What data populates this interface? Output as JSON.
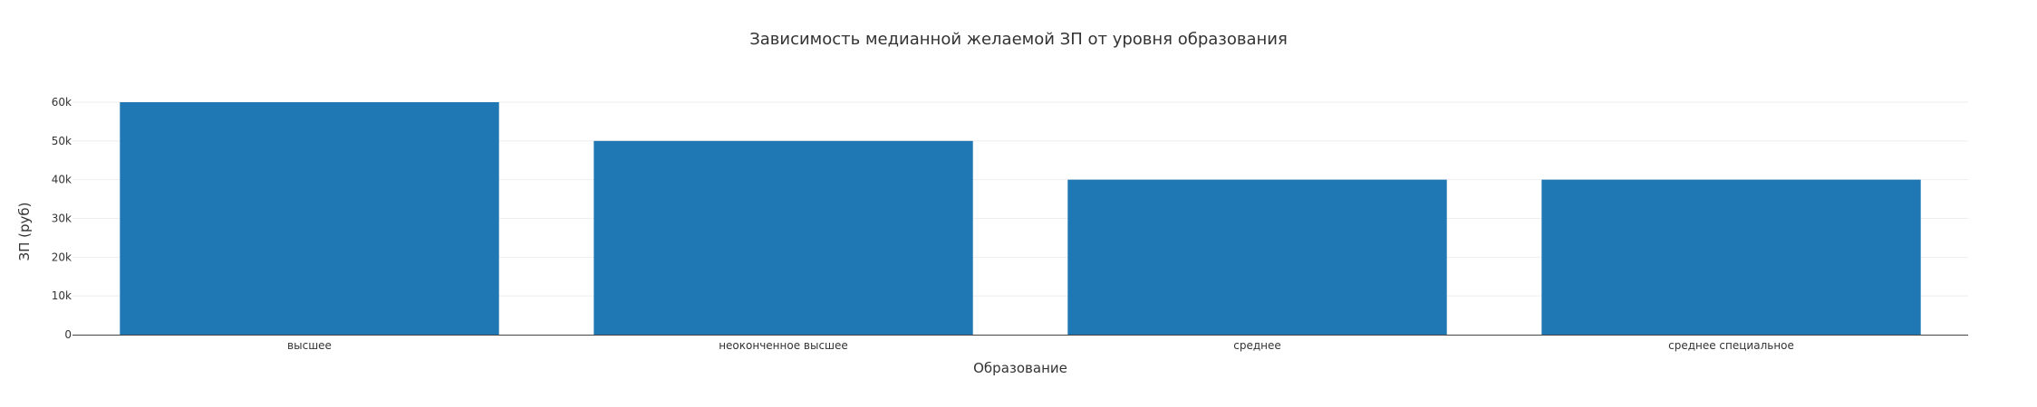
{
  "chart_data": {
    "type": "bar",
    "title": "Зависимость медианной желаемой ЗП от уровня образования",
    "xlabel": "Образование",
    "ylabel": "ЗП (руб)",
    "categories": [
      "высшее",
      "неоконченное высшее",
      "среднее",
      "среднее специальное"
    ],
    "values": [
      60000,
      50000,
      40000,
      40000
    ],
    "ylim": [
      0,
      60000
    ],
    "yticks": [
      0,
      10000,
      20000,
      30000,
      40000,
      50000,
      60000
    ],
    "ytick_labels": [
      "0",
      "10k",
      "20k",
      "30k",
      "40k",
      "50k",
      "60k"
    ],
    "grid": true,
    "bar_color": "#1f77b4"
  }
}
